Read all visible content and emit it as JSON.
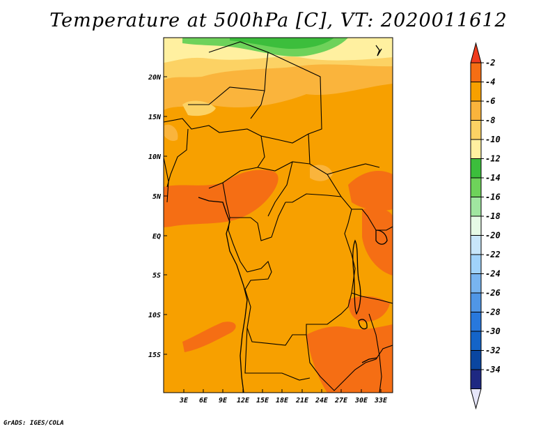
{
  "title": "Temperature at 500hPa [C], VT: 2020011612",
  "credit": "GrADS: IGES/COLA",
  "map": {
    "lat_labels": [
      "20N",
      "15N",
      "10N",
      "5N",
      "EQ",
      "5S",
      "10S",
      "15S"
    ],
    "lon_labels": [
      "3E",
      "6E",
      "9E",
      "12E",
      "15E",
      "18E",
      "21E",
      "24E",
      "27E",
      "30E",
      "33E"
    ]
  },
  "colorbar": {
    "labels": [
      "-2",
      "-4",
      "-6",
      "-8",
      "-10",
      "-12",
      "-14",
      "-16",
      "-18",
      "-20",
      "-22",
      "-24",
      "-26",
      "-28",
      "-30",
      "-32",
      "-34"
    ],
    "colors": [
      "#f03c1e",
      "#f56e14",
      "#f7a000",
      "#fab43c",
      "#fcd264",
      "#fff0a0",
      "#3cbe3c",
      "#6ed25a",
      "#a0e6a0",
      "#e6fae6",
      "#c8e6fa",
      "#a0d2fa",
      "#78b4f0",
      "#5096e6",
      "#2878dc",
      "#1464c8",
      "#0a46a0",
      "#1e2882",
      "#e6e6fa"
    ]
  }
}
